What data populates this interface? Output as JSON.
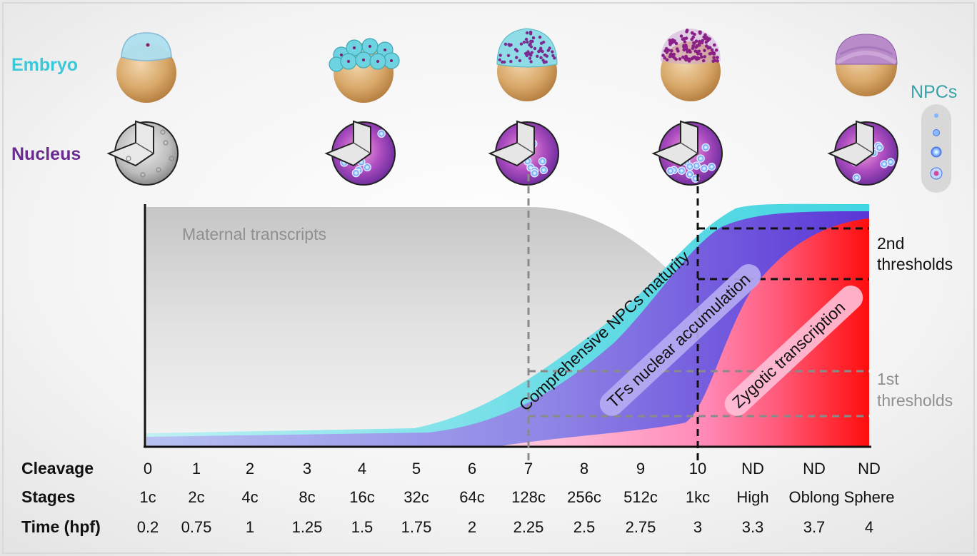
{
  "labels": {
    "embryo": "Embryo",
    "nucleus": "Nucleus",
    "npcs": "NPCs",
    "maternal": "Maternal transcripts",
    "npc_maturity": "Comprehensive NPCs maturity",
    "tf_accumulation": "TFs nuclear accumulation",
    "zygotic": "Zygotic transcription",
    "second_thresholds_1": "2nd",
    "second_thresholds_2": "thresholds",
    "first_thresholds_1": "1st",
    "first_thresholds_2": "thresholds"
  },
  "rows": {
    "cleavage_label": "Cleavage",
    "stages_label": "Stages",
    "time_label": "Time (hpf)",
    "cleavage": [
      "0",
      "1",
      "2",
      "3",
      "4",
      "5",
      "6",
      "7",
      "8",
      "9",
      "10",
      "ND",
      "ND",
      "ND"
    ],
    "stages": [
      "1c",
      "2c",
      "4c",
      "8c",
      "16c",
      "32c",
      "64c",
      "128c",
      "256c",
      "512c",
      "1kc",
      "High",
      "Oblong",
      "Sphere"
    ],
    "time": [
      "0.2",
      "0.75",
      "1",
      "1.25",
      "1.5",
      "1.75",
      "2",
      "2.25",
      "2.5",
      "2.75",
      "3",
      "3.3",
      "3.7",
      "4"
    ]
  },
  "colors": {
    "embryo": "#3cc8d8",
    "nucleus": "#6a2c91",
    "npc": "#3aa3a8",
    "maternal": "#d4d4d4",
    "npc_band": "#5fdde6",
    "tf_band": "#6b4fd8",
    "zygotic_band": "#ff1a1a",
    "threshold_2nd": "#111111",
    "threshold_1st": "#888888"
  },
  "icons": {
    "embryos": [
      "embryo-1c-icon",
      "embryo-16c-icon",
      "embryo-128c-icon",
      "embryo-1kc-icon",
      "embryo-sphere-icon"
    ],
    "nuclei": [
      "nucleus-1c-icon",
      "nucleus-16c-icon",
      "nucleus-128c-icon",
      "nucleus-1kc-icon",
      "nucleus-sphere-icon"
    ]
  }
}
